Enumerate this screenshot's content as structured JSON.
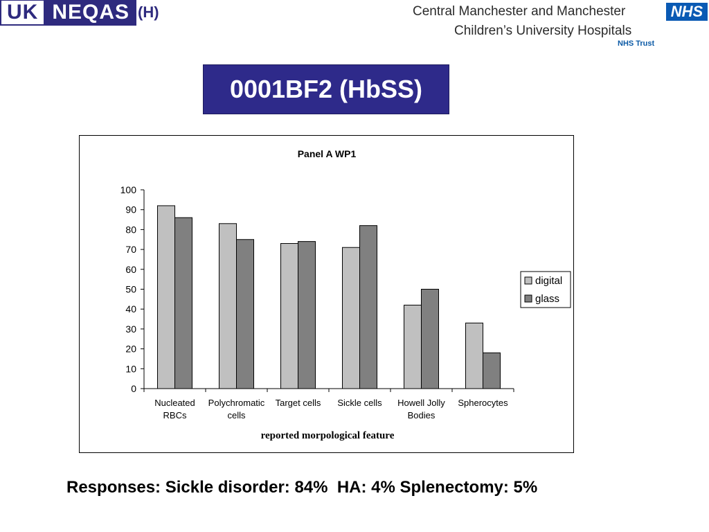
{
  "header": {
    "logo_uk": "UK",
    "logo_main": "NEQAS",
    "logo_suffix": "(H)",
    "hospital_line1": "Central Manchester and Manchester",
    "hospital_line2": "Children’s University Hospitals",
    "hospital_trust": "NHS Trust",
    "nhs_logo": "NHS"
  },
  "title": "0001BF2 (HbSS)",
  "chart_data": {
    "type": "bar",
    "title": "Panel A  WP1",
    "xlabel": "reported morpological feature",
    "ylabel": "",
    "ylim": [
      0,
      100
    ],
    "yticks": [
      "0",
      "10",
      "20",
      "30",
      "40",
      "50",
      "60",
      "70",
      "80",
      "90",
      "100"
    ],
    "categories": [
      [
        "Nucleated",
        "RBCs"
      ],
      [
        "Polychromatic",
        "cells"
      ],
      [
        "Target cells"
      ],
      [
        "Sickle cells"
      ],
      [
        "Howell Jolly",
        "Bodies"
      ],
      [
        "Spherocytes"
      ]
    ],
    "series": [
      {
        "name": "digital",
        "color": "#c0c0c0",
        "values": [
          92,
          83,
          73,
          71,
          42,
          33
        ]
      },
      {
        "name": "glass",
        "color": "#808080",
        "values": [
          86,
          75,
          74,
          82,
          50,
          18
        ]
      }
    ],
    "legend_position": "right",
    "grid": false
  },
  "footer": {
    "responses": "Responses: Sickle disorder: 84%  HA: 4% Splenectomy: 5%"
  }
}
